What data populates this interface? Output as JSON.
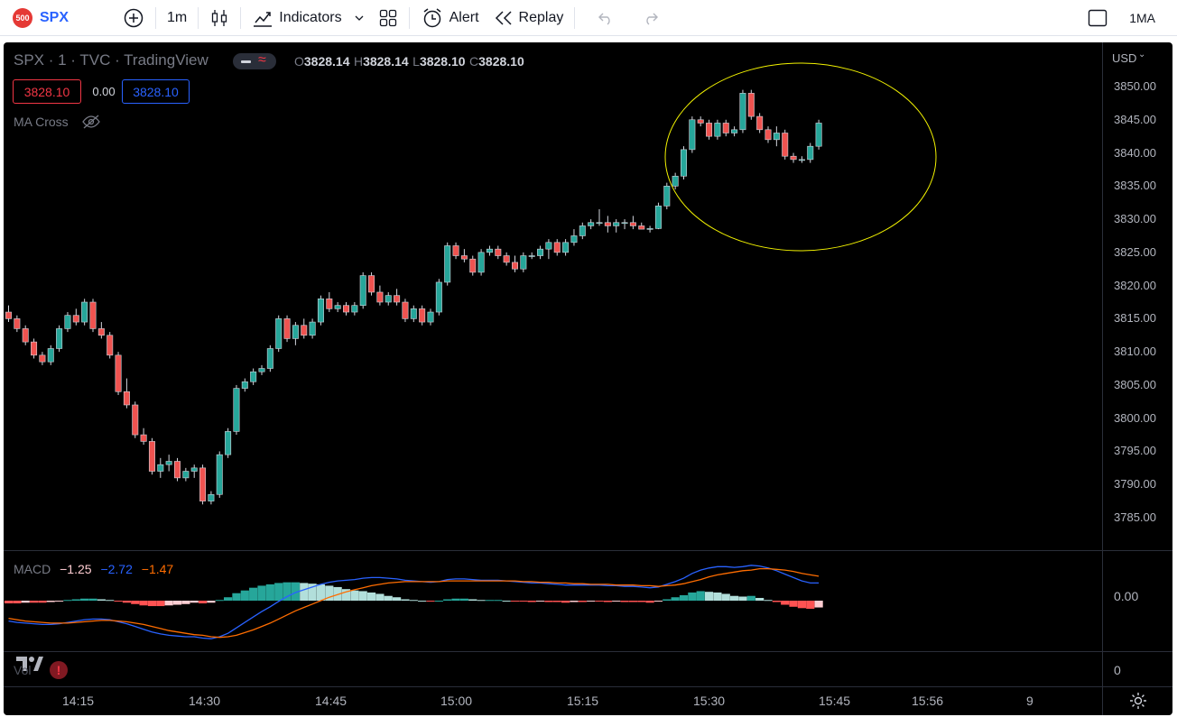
{
  "toolbar": {
    "symbol_badge": "500",
    "symbol": "SPX",
    "add_icon": "plus-circle-icon",
    "interval": "1m",
    "chart_type_icon": "candles-icon",
    "indicators_label": "Indicators",
    "templates_icon": "layout-grid-icon",
    "alert_label": "Alert",
    "replay_label": "Replay",
    "undo_icon": "undo-icon",
    "redo_icon": "redo-icon",
    "layout_icon": "square-icon",
    "layout_label": "1MA"
  },
  "legend": {
    "title": "SPX · 1 · TVC · TradingView",
    "open_label": "O",
    "open": "3828.14",
    "high_label": "H",
    "high": "3828.14",
    "low_label": "L",
    "low": "3828.10",
    "close_label": "C",
    "close": "3828.10",
    "sell_price": "3828.10",
    "spread": "0.00",
    "buy_price": "3828.10",
    "ma_cross_label": "MA Cross",
    "macd_label": "MACD",
    "macd_val1": "−1.25",
    "macd_val2": "−2.72",
    "macd_val3": "−1.47",
    "vol_label": "Vol"
  },
  "price_axis": {
    "currency": "USD",
    "labels": [
      "3850.00",
      "3845.00",
      "3840.00",
      "3835.00",
      "3830.00",
      "3825.00",
      "3820.00",
      "3815.00",
      "3810.00",
      "3805.00",
      "3800.00",
      "3795.00",
      "3790.00",
      "3785.00"
    ],
    "macd_zero": "0.00",
    "vol_zero": "0"
  },
  "time_axis": {
    "labels": [
      "14:15",
      "14:30",
      "14:45",
      "15:00",
      "15:15",
      "15:30",
      "15:45",
      "15:56",
      "9"
    ]
  },
  "colors": {
    "up": "#26a69a",
    "down": "#ef5350",
    "annotation": "#f2f200",
    "macd_line": "#2962ff",
    "signal_line": "#ff6d00"
  },
  "chart_data": {
    "type": "candlestick",
    "interval": "1m",
    "ylim": [
      3782,
      3853
    ],
    "candles": [
      [
        3816,
        3817,
        3814.5,
        3815
      ],
      [
        3815,
        3815.5,
        3813,
        3813.5
      ],
      [
        3813.5,
        3814,
        3811,
        3811.5
      ],
      [
        3811.5,
        3812,
        3809,
        3809.5
      ],
      [
        3809.5,
        3810,
        3808,
        3808.5
      ],
      [
        3808.5,
        3811,
        3808,
        3810.5
      ],
      [
        3810.5,
        3814,
        3810,
        3813.5
      ],
      [
        3813.5,
        3816,
        3813,
        3815.5
      ],
      [
        3815.5,
        3816.5,
        3814,
        3814.5
      ],
      [
        3814.5,
        3818,
        3814,
        3817.5
      ],
      [
        3817.5,
        3818,
        3813,
        3813.5
      ],
      [
        3813.5,
        3814.5,
        3812,
        3812.5
      ],
      [
        3812.5,
        3813,
        3809,
        3809.5
      ],
      [
        3809.5,
        3810,
        3803.5,
        3804
      ],
      [
        3804,
        3806,
        3801.5,
        3802
      ],
      [
        3802,
        3802.5,
        3797,
        3797.5
      ],
      [
        3797.5,
        3798.5,
        3796,
        3796.5
      ],
      [
        3796.5,
        3797,
        3791.5,
        3792
      ],
      [
        3792,
        3794,
        3791,
        3793
      ],
      [
        3793,
        3794.5,
        3792,
        3793.5
      ],
      [
        3793.5,
        3794,
        3790.5,
        3791
      ],
      [
        3791,
        3792.5,
        3790.5,
        3792
      ],
      [
        3792,
        3793,
        3791,
        3792.5
      ],
      [
        3792.5,
        3793,
        3787,
        3787.5
      ],
      [
        3787.5,
        3789,
        3787,
        3788.5
      ],
      [
        3788.5,
        3795,
        3788,
        3794.5
      ],
      [
        3794.5,
        3798.5,
        3794,
        3798
      ],
      [
        3798,
        3805,
        3797.5,
        3804.5
      ],
      [
        3804.5,
        3806,
        3804,
        3805.5
      ],
      [
        3805.5,
        3807.5,
        3805,
        3807
      ],
      [
        3807,
        3808,
        3806.5,
        3807.5
      ],
      [
        3807.5,
        3811,
        3807,
        3810.5
      ],
      [
        3810.5,
        3815.5,
        3810,
        3815
      ],
      [
        3815,
        3815.5,
        3811.5,
        3812
      ],
      [
        3812,
        3814.5,
        3811,
        3814
      ],
      [
        3814,
        3815,
        3812,
        3812.5
      ],
      [
        3812.5,
        3815,
        3812,
        3814.5
      ],
      [
        3814.5,
        3818.5,
        3814,
        3818
      ],
      [
        3818,
        3819,
        3816,
        3816.5
      ],
      [
        3816.5,
        3817.5,
        3816,
        3817
      ],
      [
        3817,
        3817.5,
        3815.5,
        3816
      ],
      [
        3816,
        3817.5,
        3815.5,
        3817
      ],
      [
        3817,
        3822,
        3816.5,
        3821.5
      ],
      [
        3821.5,
        3822,
        3818.5,
        3819
      ],
      [
        3819,
        3820,
        3817,
        3817.5
      ],
      [
        3817.5,
        3819,
        3817,
        3818.5
      ],
      [
        3818.5,
        3819.5,
        3817,
        3817.5
      ],
      [
        3817.5,
        3818,
        3814.5,
        3815
      ],
      [
        3815,
        3817,
        3814.5,
        3816.5
      ],
      [
        3816.5,
        3817,
        3814,
        3814.5
      ],
      [
        3814.5,
        3816.5,
        3814,
        3816
      ],
      [
        3816,
        3821,
        3815.5,
        3820.5
      ],
      [
        3820.5,
        3826.5,
        3820,
        3826
      ],
      [
        3826,
        3826.5,
        3824,
        3824.5
      ],
      [
        3824.5,
        3825.5,
        3823.5,
        3824
      ],
      [
        3824,
        3824.5,
        3821.5,
        3822
      ],
      [
        3822,
        3825.5,
        3821.5,
        3825
      ],
      [
        3825,
        3826,
        3824.5,
        3825.5
      ],
      [
        3825.5,
        3826,
        3824,
        3824.5
      ],
      [
        3824.5,
        3825,
        3823,
        3823.5
      ],
      [
        3823.5,
        3824.5,
        3822,
        3822.5
      ],
      [
        3822.5,
        3825,
        3822,
        3824.5
      ],
      [
        3824.5,
        3825,
        3824,
        3824.5
      ],
      [
        3824.5,
        3826,
        3824,
        3825.5
      ],
      [
        3825.5,
        3827,
        3824,
        3826.5
      ],
      [
        3826.5,
        3827,
        3824.5,
        3825
      ],
      [
        3825,
        3827,
        3824.5,
        3826.5
      ],
      [
        3826.5,
        3828.5,
        3826,
        3827.5
      ],
      [
        3827.5,
        3829.5,
        3827,
        3829
      ],
      [
        3829,
        3830,
        3828.5,
        3829.5
      ],
      [
        3829.5,
        3831.5,
        3829,
        3829.5
      ],
      [
        3829.5,
        3830.5,
        3828,
        3829
      ],
      [
        3829,
        3830,
        3828,
        3829.5
      ],
      [
        3829.5,
        3830,
        3828.5,
        3829.5
      ],
      [
        3829.5,
        3830.5,
        3828.5,
        3829
      ],
      [
        3829,
        3829.5,
        3828.5,
        3828.5
      ],
      [
        3828.5,
        3829,
        3828,
        3828.6
      ],
      [
        3828.6,
        3832.5,
        3828.5,
        3832
      ],
      [
        3832,
        3835.5,
        3831.5,
        3835
      ],
      [
        3835,
        3837,
        3834.5,
        3836.5
      ],
      [
        3836.5,
        3841,
        3836,
        3840.5
      ],
      [
        3840.5,
        3845.5,
        3840,
        3845
      ],
      [
        3845,
        3845.5,
        3844,
        3844.5
      ],
      [
        3844.5,
        3845,
        3842,
        3842.5
      ],
      [
        3842.5,
        3845,
        3842,
        3844.5
      ],
      [
        3844.5,
        3845,
        3842.5,
        3843
      ],
      [
        3843,
        3844,
        3842.5,
        3843.5
      ],
      [
        3843.5,
        3849.5,
        3843,
        3849
      ],
      [
        3849,
        3849.5,
        3845,
        3845.5
      ],
      [
        3845.5,
        3846,
        3843,
        3843.5
      ],
      [
        3843.5,
        3844,
        3841.5,
        3842
      ],
      [
        3842,
        3844,
        3841,
        3843
      ],
      [
        3843,
        3843.5,
        3839,
        3839.5
      ],
      [
        3839.5,
        3840,
        3838.5,
        3839
      ],
      [
        3839,
        3839.5,
        3838.5,
        3839
      ],
      [
        3839,
        3841.5,
        3838.5,
        3841
      ],
      [
        3841,
        3845,
        3840.5,
        3844.5
      ]
    ],
    "macd": [
      -3.0,
      -3.2,
      -3.3,
      -3.4,
      -3.5,
      -3.5,
      -3.4,
      -3.2,
      -3.0,
      -2.8,
      -2.7,
      -2.7,
      -2.8,
      -3.1,
      -3.4,
      -3.8,
      -4.2,
      -4.6,
      -4.9,
      -5.1,
      -5.2,
      -5.3,
      -5.3,
      -5.5,
      -5.6,
      -5.3,
      -4.8,
      -4.0,
      -3.2,
      -2.4,
      -1.6,
      -0.9,
      -0.1,
      0.6,
      1.2,
      1.6,
      2.0,
      2.4,
      2.7,
      2.9,
      3.0,
      3.1,
      3.3,
      3.4,
      3.4,
      3.3,
      3.2,
      3.0,
      2.9,
      2.8,
      2.7,
      2.8,
      3.1,
      3.2,
      3.2,
      3.1,
      3.0,
      3.0,
      3.0,
      2.9,
      2.8,
      2.7,
      2.6,
      2.6,
      2.5,
      2.4,
      2.3,
      2.3,
      2.3,
      2.3,
      2.3,
      2.2,
      2.2,
      2.1,
      2.1,
      2.0,
      1.9,
      2.0,
      2.4,
      2.8,
      3.3,
      4.0,
      4.5,
      4.8,
      5.0,
      5.0,
      4.9,
      5.0,
      5.2,
      5.1,
      4.8,
      4.4,
      3.9,
      3.4,
      2.9,
      2.6,
      2.6
    ],
    "signal": [
      -2.6,
      -2.8,
      -3.0,
      -3.1,
      -3.2,
      -3.3,
      -3.3,
      -3.3,
      -3.2,
      -3.1,
      -3.0,
      -2.9,
      -2.9,
      -3.0,
      -3.1,
      -3.3,
      -3.5,
      -3.8,
      -4.1,
      -4.4,
      -4.6,
      -4.8,
      -5.0,
      -5.1,
      -5.3,
      -5.4,
      -5.3,
      -5.1,
      -4.7,
      -4.3,
      -3.8,
      -3.3,
      -2.7,
      -2.1,
      -1.5,
      -1.0,
      -0.5,
      0.0,
      0.5,
      0.9,
      1.3,
      1.6,
      1.9,
      2.2,
      2.4,
      2.6,
      2.7,
      2.8,
      2.8,
      2.8,
      2.8,
      2.8,
      2.9,
      2.9,
      2.9,
      2.9,
      2.9,
      2.9,
      2.9,
      2.9,
      2.9,
      2.8,
      2.8,
      2.7,
      2.7,
      2.6,
      2.6,
      2.5,
      2.5,
      2.4,
      2.4,
      2.4,
      2.3,
      2.3,
      2.3,
      2.2,
      2.2,
      2.1,
      2.2,
      2.3,
      2.5,
      2.8,
      3.1,
      3.5,
      3.8,
      4.0,
      4.2,
      4.4,
      4.5,
      4.7,
      4.7,
      4.6,
      4.5,
      4.3,
      4.0,
      3.8,
      3.6
    ],
    "hist": [
      -0.4,
      -0.4,
      -0.3,
      -0.3,
      -0.3,
      -0.2,
      -0.1,
      0.1,
      0.2,
      0.3,
      0.3,
      0.2,
      0.1,
      -0.1,
      -0.3,
      -0.5,
      -0.7,
      -0.8,
      -0.8,
      -0.7,
      -0.6,
      -0.5,
      -0.3,
      -0.4,
      -0.3,
      0.1,
      0.5,
      1.1,
      1.5,
      1.9,
      2.2,
      2.4,
      2.6,
      2.7,
      2.7,
      2.6,
      2.5,
      2.4,
      2.2,
      2.0,
      1.7,
      1.5,
      1.4,
      1.2,
      1.0,
      0.7,
      0.5,
      0.2,
      0.1,
      0.0,
      -0.1,
      0.0,
      0.2,
      0.3,
      0.3,
      0.2,
      0.1,
      0.1,
      0.1,
      0.0,
      -0.1,
      -0.1,
      -0.2,
      -0.1,
      -0.2,
      -0.2,
      -0.3,
      -0.2,
      -0.2,
      -0.1,
      -0.1,
      -0.2,
      -0.1,
      -0.2,
      -0.2,
      -0.2,
      -0.3,
      -0.1,
      0.2,
      0.5,
      0.8,
      1.2,
      1.4,
      1.3,
      1.2,
      1.0,
      0.7,
      0.6,
      0.7,
      0.4,
      0.1,
      -0.2,
      -0.6,
      -0.9,
      -1.1,
      -1.2,
      -1.0
    ],
    "macd_ylim": [
      -6.5,
      6.5
    ]
  }
}
